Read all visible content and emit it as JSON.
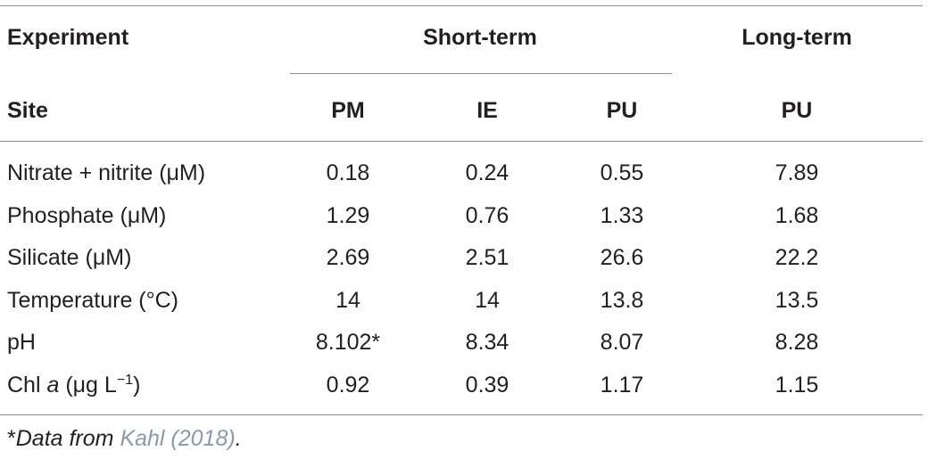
{
  "table": {
    "header": {
      "experiment": "Experiment",
      "short_term": "Short-term",
      "long_term": "Long-term",
      "site": "Site",
      "sites": [
        "PM",
        "IE",
        "PU",
        "PU"
      ]
    },
    "rows": [
      {
        "label": [
          "Nitrate + nitrite (μM)"
        ],
        "values": [
          "0.18",
          "0.24",
          "0.55",
          "7.89"
        ]
      },
      {
        "label": [
          "Phosphate (μM)"
        ],
        "values": [
          "1.29",
          "0.76",
          "1.33",
          "1.68"
        ]
      },
      {
        "label": [
          "Silicate (μM)"
        ],
        "values": [
          "2.69",
          "2.51",
          "26.6",
          "22.2"
        ]
      },
      {
        "label": [
          "Temperature (°C)"
        ],
        "values": [
          "14",
          "14",
          "13.8",
          "13.5"
        ]
      },
      {
        "label": [
          "pH"
        ],
        "values": [
          "8.102*",
          "8.34",
          "8.07",
          "8.28"
        ]
      },
      {
        "label": [
          "Chl ",
          "a",
          " (μg L",
          "−1",
          ")"
        ],
        "values": [
          "0.92",
          "0.39",
          "1.17",
          "1.15"
        ]
      }
    ],
    "footnote": [
      "*",
      "Data from ",
      "Kahl (2018)",
      "."
    ]
  }
}
